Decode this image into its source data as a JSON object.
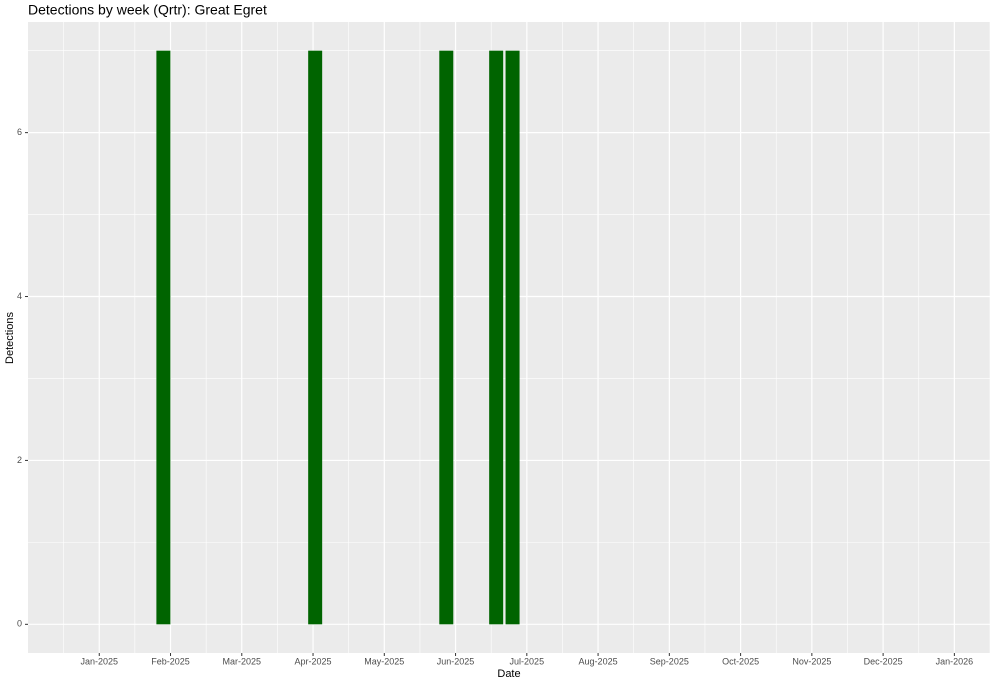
{
  "chart_data": {
    "type": "bar",
    "title": "Detections by week (Qrtr): Great Egret",
    "x_label": "Date",
    "y_label": "Detections",
    "x": [
      0.9,
      3.03,
      4.87,
      5.57,
      5.8
    ],
    "values": [
      7,
      7,
      7,
      7,
      7
    ],
    "color": "#006400",
    "xlim": [
      -1,
      12.5
    ],
    "xticks": [
      {
        "value": 0,
        "label": "Jan-2025"
      },
      {
        "value": 1,
        "label": "Feb-2025"
      },
      {
        "value": 2,
        "label": "Mar-2025"
      },
      {
        "value": 3,
        "label": "Apr-2025"
      },
      {
        "value": 4,
        "label": "May-2025"
      },
      {
        "value": 5,
        "label": "Jun-2025"
      },
      {
        "value": 6,
        "label": "Jul-2025"
      },
      {
        "value": 7,
        "label": "Aug-2025"
      },
      {
        "value": 8,
        "label": "Sep-2025"
      },
      {
        "value": 9,
        "label": "Oct-2025"
      },
      {
        "value": 10,
        "label": "Nov-2025"
      },
      {
        "value": 11,
        "label": "Dec-2025"
      },
      {
        "value": 12,
        "label": "Jan-2026"
      }
    ],
    "ylim": [
      -0.35,
      7.35
    ],
    "yticks": [
      0,
      2,
      4,
      6
    ],
    "grid": true
  }
}
